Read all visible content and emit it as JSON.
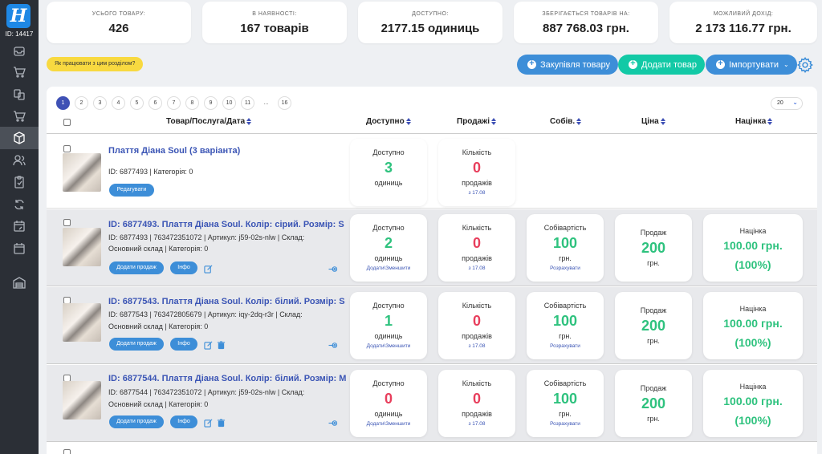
{
  "sidebar": {
    "logo": "H",
    "user_id": "ID: 14417",
    "icons": [
      "inbox-icon",
      "cart-icon",
      "products-swap-icon",
      "cart-icon",
      "box-icon",
      "users-icon",
      "clipboard-icon",
      "refresh-icon",
      "calendar-edit-icon",
      "calendar-icon",
      "warehouse-icon"
    ]
  },
  "stats": [
    {
      "label": "УСЬОГО ТОВАРУ:",
      "value": "426"
    },
    {
      "label": "В НАЯВНОСТІ:",
      "value": "167 товарів"
    },
    {
      "label": "ДОСТУПНО:",
      "value": "2177.15 одиниць"
    },
    {
      "label": "ЗБЕРІГАЄТЬСЯ ТОВАРІВ НА:",
      "value": "887 768.03 грн."
    },
    {
      "label": "МОЖЛИВИЙ ДОХІД:",
      "value": "2 173 116.77 грн."
    }
  ],
  "toolbar": {
    "help": "Як працювати з цим розділом?",
    "purchase": "Закупівля товару",
    "add": "Додати товар",
    "import": "Імпортувати",
    "import_caret": "⌄"
  },
  "pagination": {
    "pages": [
      "1",
      "2",
      "3",
      "4",
      "5",
      "6",
      "7",
      "8",
      "9",
      "10",
      "11",
      "...",
      "16"
    ],
    "active": "1",
    "per_page": "20"
  },
  "columns": {
    "product": "Товар/Послуга/Дата",
    "available": "Доступно",
    "sales": "Продажі",
    "cost": "Собів.",
    "price": "Ціна",
    "markup": "Націнка"
  },
  "parent": {
    "title": "Плаття Діана Soul (3 варіанта)",
    "info": "ID: 6877493 | Категорія: 0",
    "edit_btn": "Редагувати",
    "available": {
      "title": "Доступно",
      "value": "3",
      "unit": "одиниць"
    },
    "sales": {
      "title": "Кількість",
      "value": "0",
      "unit": "продажів",
      "date": "з 17.08"
    }
  },
  "variants": [
    {
      "title": "ID: 6877493. Плаття Діана Soul. Колір: сірий. Розмір: S",
      "info_line1": "ID: 6877493 | 763472351072 | Артикул: j59-02s-nlw | Склад:",
      "info_line2": "Основний склад | Категорія: 0",
      "add_sale": "Додати продаж",
      "info_btn": "Інфо",
      "has_delete": false,
      "available": {
        "title": "Доступно",
        "value": "2",
        "unit": "одиниць",
        "link": "Додати\\Зменшити"
      },
      "sales": {
        "title": "Кількість",
        "value": "0",
        "unit": "продажів",
        "date": "з 17.08"
      },
      "cost": {
        "title": "Собівартість",
        "value": "100",
        "unit": "грн.",
        "link": "Розрахувати"
      },
      "price": {
        "title": "Продаж",
        "value": "200",
        "unit": "грн."
      },
      "markup": {
        "title": "Націнка",
        "value": "100.00 грн.",
        "percent": "(100%)"
      }
    },
    {
      "title": "ID: 6877543. Плаття Діана Soul. Колір: білий. Розмір: S",
      "info_line1": "ID: 6877543 | 763472805679 | Артикул: iqy-2dq-r3r | Склад:",
      "info_line2": "Основний склад | Категорія: 0",
      "add_sale": "Додати продаж",
      "info_btn": "Інфо",
      "has_delete": true,
      "available": {
        "title": "Доступно",
        "value": "1",
        "unit": "одиниць",
        "link": "Додати\\Зменшити"
      },
      "sales": {
        "title": "Кількість",
        "value": "0",
        "unit": "продажів",
        "date": "з 17.08"
      },
      "cost": {
        "title": "Собівартість",
        "value": "100",
        "unit": "грн.",
        "link": "Розрахувати"
      },
      "price": {
        "title": "Продаж",
        "value": "200",
        "unit": "грн."
      },
      "markup": {
        "title": "Націнка",
        "value": "100.00 грн.",
        "percent": "(100%)"
      }
    },
    {
      "title": "ID: 6877544. Плаття Діана Soul. Колір: білий. Розмір: M",
      "info_line1": "ID: 6877544 | 763472351072 | Артикул: j59-02s-nlw | Склад:",
      "info_line2": "Основний склад | Категорія: 0",
      "add_sale": "Додати продаж",
      "info_btn": "Інфо",
      "has_delete": true,
      "available": {
        "title": "Доступно",
        "value": "0",
        "unit": "одиниць",
        "link": "Додати\\Зменшити"
      },
      "sales": {
        "title": "Кількість",
        "value": "0",
        "unit": "продажів",
        "date": "з 17.08"
      },
      "cost": {
        "title": "Собівартість",
        "value": "100",
        "unit": "грн.",
        "link": "Розрахувати"
      },
      "price": {
        "title": "Продаж",
        "value": "200",
        "unit": "грн."
      },
      "markup": {
        "title": "Націнка",
        "value": "100.00 грн.",
        "percent": "(100%)"
      }
    }
  ],
  "colors": {
    "accent": "#3d8ed8",
    "teal": "#12c9a6",
    "green": "#2ec27e",
    "red": "#e83e5c",
    "sidebar": "#2b2f36"
  }
}
